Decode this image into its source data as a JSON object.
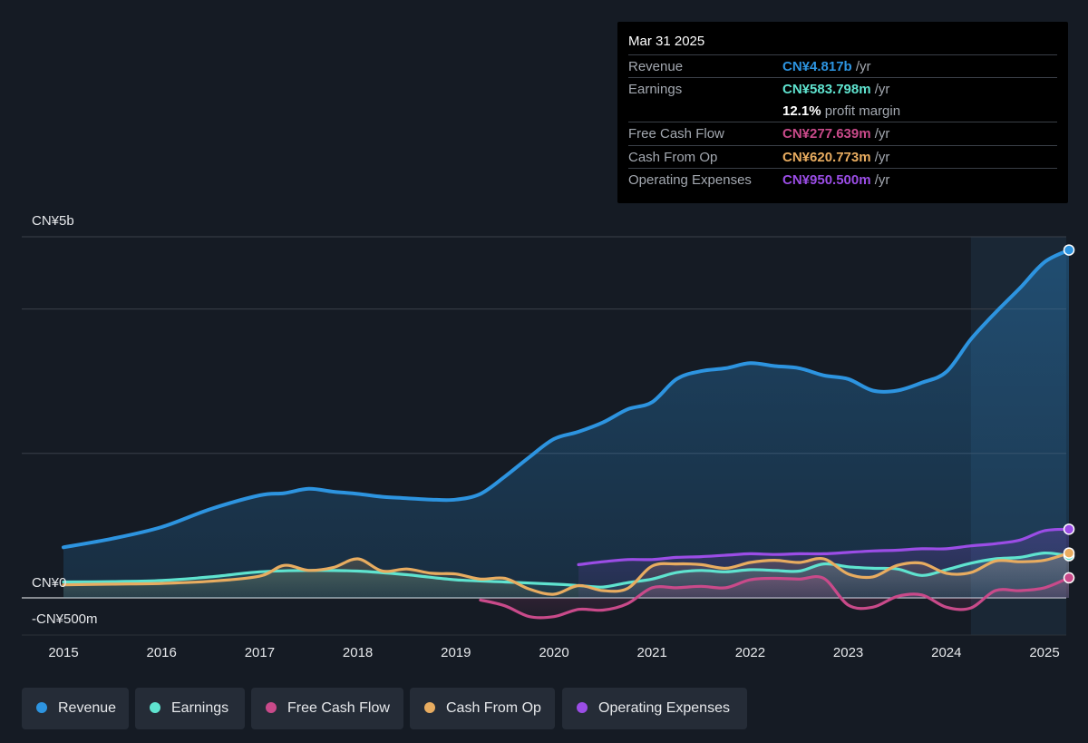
{
  "colors": {
    "background": "#151b24",
    "revenue": "#2d94e0",
    "earnings": "#5fe3cf",
    "free_cash_flow": "#c94a8a",
    "cash_from_op": "#e8ac60",
    "operating_expenses": "#9b4de6",
    "grid": "#3a404a",
    "highlight": "#1b2a3a"
  },
  "tooltip": {
    "date": "Mar 31 2025",
    "rows": [
      {
        "label": "Revenue",
        "value": "CN¥4.817b",
        "suffix": " /yr",
        "color": "#2d94e0"
      },
      {
        "label": "Earnings",
        "value": "CN¥583.798m",
        "suffix": " /yr",
        "color": "#5fe3cf"
      },
      {
        "label": "",
        "value": "12.1%",
        "suffix": " profit margin",
        "color": "#ffffff"
      },
      {
        "label": "Free Cash Flow",
        "value": "CN¥277.639m",
        "suffix": " /yr",
        "color": "#c94a8a"
      },
      {
        "label": "Cash From Op",
        "value": "CN¥620.773m",
        "suffix": " /yr",
        "color": "#e8ac60"
      },
      {
        "label": "Operating Expenses",
        "value": "CN¥950.500m",
        "suffix": " /yr",
        "color": "#9b4de6"
      }
    ]
  },
  "legend": [
    {
      "label": "Revenue",
      "color": "#2d94e0"
    },
    {
      "label": "Earnings",
      "color": "#5fe3cf"
    },
    {
      "label": "Free Cash Flow",
      "color": "#c94a8a"
    },
    {
      "label": "Cash From Op",
      "color": "#e8ac60"
    },
    {
      "label": "Operating Expenses",
      "color": "#9b4de6"
    }
  ],
  "chart_data": {
    "type": "area",
    "y_unit": "CN¥ millions",
    "ylim": [
      -500,
      5000
    ],
    "y_tick_labels": [
      {
        "value": 5000,
        "label": "CN¥5b"
      },
      {
        "value": 0,
        "label": "CN¥0"
      },
      {
        "value": -500,
        "label": "-CN¥500m"
      }
    ],
    "gridlines": [
      5000,
      4000,
      2000,
      0
    ],
    "xlim": [
      2014.8,
      2025.25
    ],
    "x_ticks": [
      2015,
      2016,
      2017,
      2018,
      2019,
      2020,
      2021,
      2022,
      2023,
      2024,
      2025
    ],
    "x_tick_labels": [
      "2015",
      "2016",
      "2017",
      "2018",
      "2019",
      "2020",
      "2021",
      "2022",
      "2023",
      "2024",
      "2025"
    ],
    "highlight_start": 2024.25,
    "series": [
      {
        "name": "Revenue",
        "x": [
          2015.0,
          2015.5,
          2016.0,
          2016.5,
          2017.0,
          2017.25,
          2017.5,
          2017.75,
          2018.0,
          2018.25,
          2018.5,
          2018.75,
          2019.0,
          2019.25,
          2019.5,
          2019.75,
          2020.0,
          2020.25,
          2020.5,
          2020.75,
          2021.0,
          2021.25,
          2021.5,
          2021.75,
          2022.0,
          2022.25,
          2022.5,
          2022.75,
          2023.0,
          2023.25,
          2023.5,
          2023.75,
          2024.0,
          2024.25,
          2024.5,
          2024.75,
          2025.0,
          2025.25
        ],
        "values": [
          700,
          820,
          980,
          1230,
          1420,
          1450,
          1510,
          1470,
          1440,
          1400,
          1380,
          1360,
          1360,
          1440,
          1680,
          1950,
          2200,
          2300,
          2430,
          2610,
          2710,
          3030,
          3140,
          3180,
          3250,
          3210,
          3180,
          3080,
          3030,
          2870,
          2870,
          2980,
          3130,
          3580,
          3950,
          4290,
          4650,
          4817
        ]
      },
      {
        "name": "Earnings",
        "x": [
          2015.0,
          2015.5,
          2016.0,
          2016.5,
          2017.0,
          2017.5,
          2018.0,
          2018.5,
          2019.0,
          2019.5,
          2020.0,
          2020.25,
          2020.5,
          2020.75,
          2021.0,
          2021.25,
          2021.5,
          2021.75,
          2022.0,
          2022.25,
          2022.5,
          2022.75,
          2023.0,
          2023.25,
          2023.5,
          2023.75,
          2024.0,
          2024.25,
          2024.5,
          2024.75,
          2025.0,
          2025.25
        ],
        "values": [
          220,
          225,
          240,
          290,
          360,
          380,
          370,
          320,
          250,
          220,
          190,
          170,
          150,
          210,
          260,
          350,
          380,
          360,
          390,
          380,
          370,
          470,
          430,
          410,
          400,
          310,
          390,
          480,
          540,
          560,
          620,
          583.8
        ]
      },
      {
        "name": "Free Cash Flow",
        "x": [
          2019.25,
          2019.5,
          2019.75,
          2020.0,
          2020.25,
          2020.5,
          2020.75,
          2021.0,
          2021.25,
          2021.5,
          2021.75,
          2022.0,
          2022.25,
          2022.5,
          2022.75,
          2023.0,
          2023.25,
          2023.5,
          2023.75,
          2024.0,
          2024.25,
          2024.5,
          2024.75,
          2025.0,
          2025.25
        ],
        "values": [
          -30,
          -110,
          -260,
          -260,
          -160,
          -170,
          -80,
          140,
          140,
          160,
          140,
          250,
          270,
          260,
          270,
          -100,
          -130,
          20,
          40,
          -130,
          -140,
          100,
          100,
          140,
          277.6
        ]
      },
      {
        "name": "Cash From Op",
        "x": [
          2015.0,
          2015.5,
          2016.0,
          2016.5,
          2017.0,
          2017.25,
          2017.5,
          2017.75,
          2018.0,
          2018.25,
          2018.5,
          2018.75,
          2019.0,
          2019.25,
          2019.5,
          2019.75,
          2020.0,
          2020.25,
          2020.5,
          2020.75,
          2021.0,
          2021.25,
          2021.5,
          2021.75,
          2022.0,
          2022.25,
          2022.5,
          2022.75,
          2023.0,
          2023.25,
          2023.5,
          2023.75,
          2024.0,
          2024.25,
          2024.5,
          2024.75,
          2025.0,
          2025.25
        ],
        "values": [
          180,
          190,
          200,
          230,
          300,
          450,
          380,
          420,
          540,
          370,
          400,
          340,
          330,
          260,
          270,
          120,
          50,
          170,
          100,
          130,
          440,
          470,
          460,
          410,
          490,
          520,
          490,
          540,
          330,
          290,
          450,
          480,
          340,
          350,
          510,
          500,
          520,
          620.8
        ]
      },
      {
        "name": "Operating Expenses",
        "x": [
          2020.25,
          2020.5,
          2020.75,
          2021.0,
          2021.25,
          2021.5,
          2021.75,
          2022.0,
          2022.25,
          2022.5,
          2022.75,
          2023.0,
          2023.25,
          2023.5,
          2023.75,
          2024.0,
          2024.25,
          2024.5,
          2024.75,
          2025.0,
          2025.25
        ],
        "values": [
          460,
          500,
          530,
          530,
          560,
          570,
          590,
          610,
          600,
          610,
          610,
          630,
          650,
          660,
          680,
          680,
          720,
          750,
          800,
          930,
          950.5
        ]
      }
    ]
  }
}
